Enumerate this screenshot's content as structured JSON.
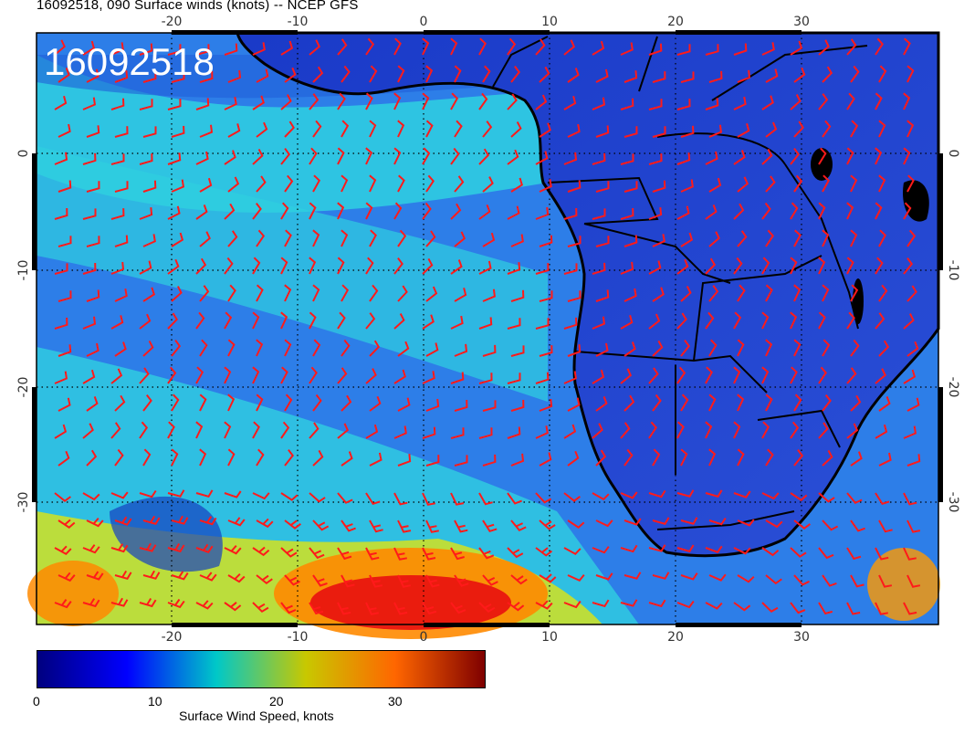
{
  "header": {
    "title": "16092518, 090 Surface winds (knots) -- NCEP GFS"
  },
  "map": {
    "timestamp": "16092518",
    "lon_ticks_top": [
      "-20",
      "-10",
      "0",
      "10",
      "20",
      "30"
    ],
    "lon_ticks_bottom": [
      "-20",
      "-10",
      "0",
      "10",
      "20",
      "30"
    ],
    "lat_ticks_left": [
      "0",
      "-10",
      "-20",
      "-30"
    ],
    "lat_ticks_right": [
      "0",
      "-10",
      "-20",
      "-30"
    ],
    "barb_color": "#ff1a1a"
  },
  "colorbar": {
    "tick_labels": [
      "0",
      "10",
      "20",
      "30"
    ],
    "label": "Surface Wind Speed, knots",
    "colors": [
      "#00007f",
      "#0000ff",
      "#00c8c8",
      "#c8c800",
      "#ff6600",
      "#7f0000"
    ]
  }
}
